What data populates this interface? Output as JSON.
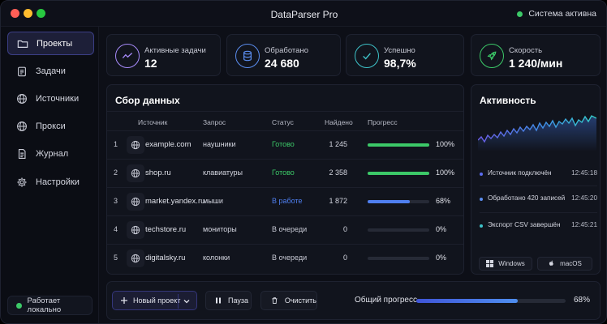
{
  "window": {
    "title": "DataParser Pro",
    "system_status": "Система активна",
    "colors": {
      "close": "#ff5f57",
      "minimize": "#febc2e",
      "maximize": "#28c840"
    }
  },
  "sidebar": {
    "items": [
      {
        "label": "Проекты",
        "icon": "folder-icon",
        "active": true
      },
      {
        "label": "Задачи",
        "icon": "clipboard-icon"
      },
      {
        "label": "Источники",
        "icon": "globe-icon"
      },
      {
        "label": "Прокси",
        "icon": "globe-icon"
      },
      {
        "label": "Журнал",
        "icon": "document-icon"
      },
      {
        "label": "Настройки",
        "icon": "gear-icon"
      }
    ],
    "local_status": "Работает локально"
  },
  "stats": [
    {
      "label": "Активные задачи",
      "value": "12",
      "icon": "activity-icon",
      "color": "#a78bfa"
    },
    {
      "label": "Обработано",
      "value": "24 680",
      "icon": "database-icon",
      "color": "#5b8def"
    },
    {
      "label": "Успешно",
      "value": "98,7%",
      "icon": "check-icon",
      "color": "#3ec3c9"
    },
    {
      "label": "Скорость",
      "value": "1 240/мин",
      "icon": "rocket-icon",
      "color": "#3cc968"
    }
  ],
  "collection": {
    "title": "Сбор данных",
    "columns": {
      "source": "Источник",
      "query": "Запрос",
      "status": "Статус",
      "found": "Найдено",
      "progress": "Прогресс"
    },
    "rows": [
      {
        "num": "1",
        "source": "example.com",
        "query": "наушники",
        "status": "Готово",
        "status_color": "#3cc968",
        "found": "1 245",
        "progress": 1.0,
        "bar_color": "#3cc968",
        "pct": "100%"
      },
      {
        "num": "2",
        "source": "shop.ru",
        "query": "клавиатуры",
        "status": "Готово",
        "status_color": "#3cc968",
        "found": "2 358",
        "progress": 1.0,
        "bar_color": "#3cc968",
        "pct": "100%"
      },
      {
        "num": "3",
        "source": "market.yandex.ru",
        "query": "мыши",
        "status": "В работе",
        "status_color": "#4f7ff0",
        "found": "1 872",
        "progress": 0.68,
        "bar_color": "#4f7ff0",
        "pct": "68%"
      },
      {
        "num": "4",
        "source": "techstore.ru",
        "query": "мониторы",
        "status": "В очереди",
        "status_color": "#c7c9d4",
        "found": "0",
        "progress": 0,
        "bar_color": "#4f7ff0",
        "pct": "0%"
      },
      {
        "num": "5",
        "source": "digitalsky.ru",
        "query": "колонки",
        "status": "В очереди",
        "status_color": "#c7c9d4",
        "found": "0",
        "progress": 0,
        "bar_color": "#4f7ff0",
        "pct": "0%"
      }
    ]
  },
  "activity": {
    "title": "Активность",
    "events": [
      {
        "text": "Источник подключён",
        "time": "12:45:18",
        "color": "#5b6cf0"
      },
      {
        "text": "Обработано 420 записей",
        "time": "12:45:20",
        "color": "#5b8def"
      },
      {
        "text": "Экспорт CSV завершён",
        "time": "12:45:21",
        "color": "#3ec3c9"
      }
    ],
    "os_buttons": [
      {
        "label": "Windows",
        "icon": "windows-icon"
      },
      {
        "label": "macOS",
        "icon": "apple-icon"
      }
    ]
  },
  "footer": {
    "new_project": "Новый проект",
    "pause": "Пауза",
    "clear": "Очистить",
    "overall_label": "Общий прогресс",
    "overall_progress": 0.68,
    "overall_pct": "68%"
  }
}
